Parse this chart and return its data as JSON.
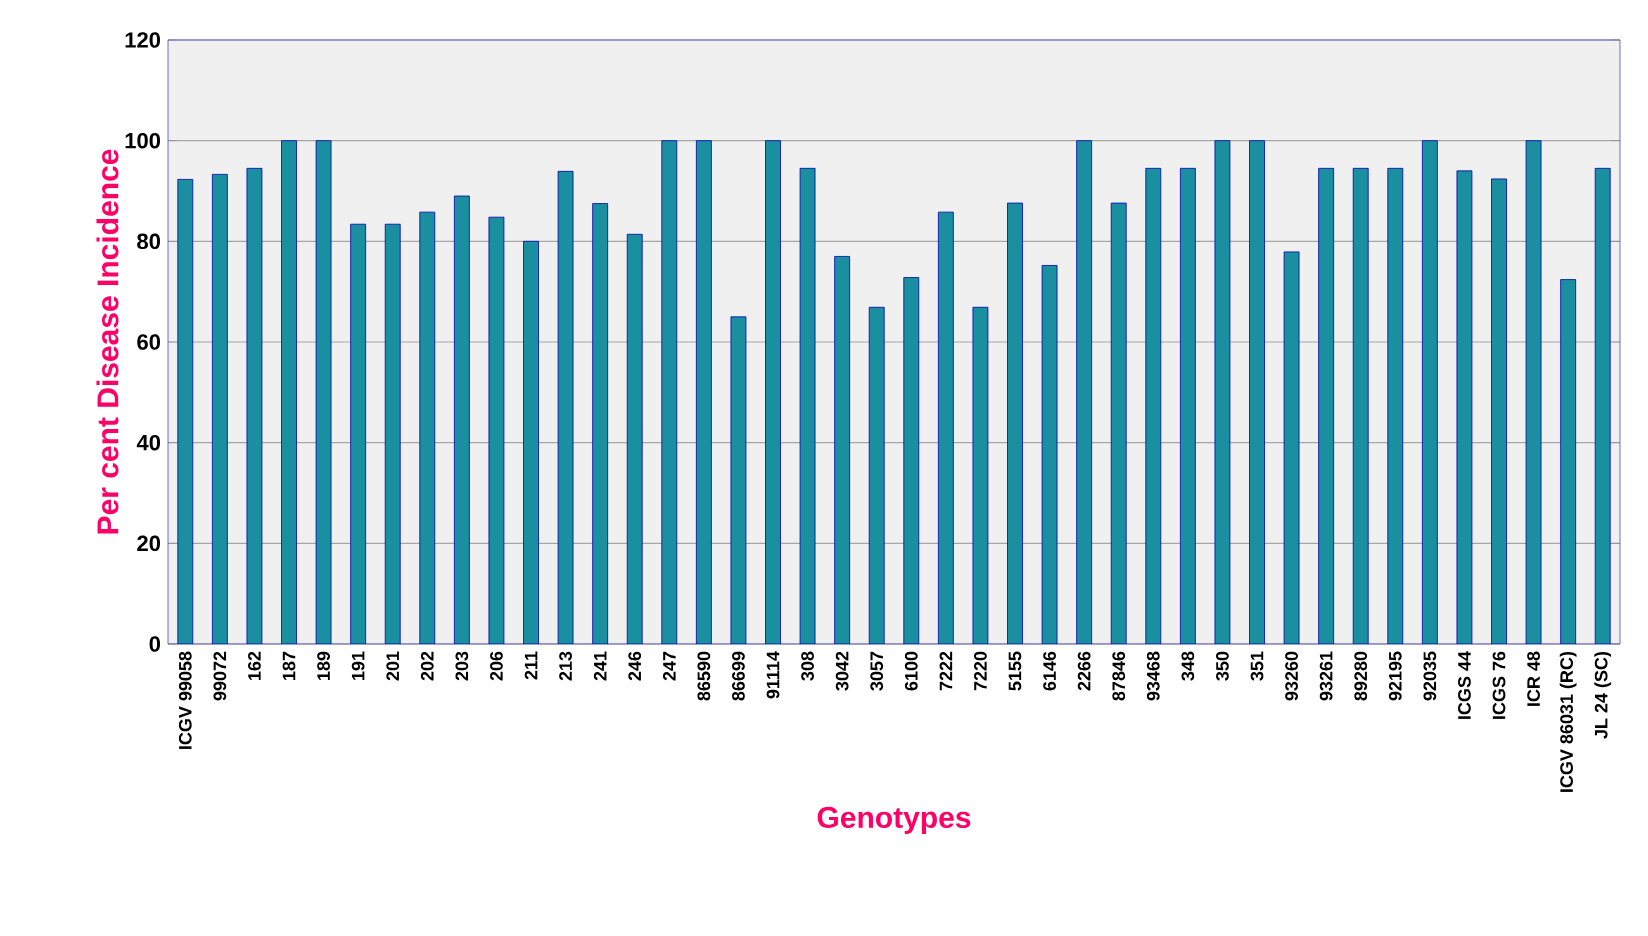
{
  "chart_data": {
    "type": "bar",
    "xlabel": "Genotypes",
    "ylabel": "Per cent Disease  Incidence",
    "categories": [
      "ICGV 99058",
      "99072",
      "162",
      "187",
      "189",
      "191",
      "201",
      "202",
      "203",
      "206",
      "211",
      "213",
      "241",
      "246",
      "247",
      "86590",
      "86699",
      "91114",
      "308",
      "3042",
      "3057",
      "6100",
      "7222",
      "7220",
      "5155",
      "6146",
      "2266",
      "87846",
      "93468",
      "348",
      "350",
      "351",
      "93260",
      "93261",
      "89280",
      "92195",
      "92035",
      "ICGS 44",
      "ICGS 76",
      "ICR 48",
      "ICGV 86031 (RC)",
      "JL 24 (SC)"
    ],
    "values": [
      92.3,
      93.3,
      94.5,
      100,
      100,
      83.4,
      83.4,
      85.8,
      89.0,
      84.8,
      80.0,
      93.9,
      87.5,
      81.4,
      100,
      100,
      65.0,
      100,
      94.5,
      77.0,
      66.9,
      72.8,
      85.8,
      66.9,
      87.6,
      75.2,
      100,
      87.6,
      94.5,
      94.5,
      100,
      100,
      77.9,
      94.5,
      94.5,
      94.5,
      100,
      94.0,
      92.4,
      100,
      72.4,
      94.5
    ],
    "color": "#1a8fa0",
    "ylim": [
      0,
      120
    ],
    "yticks": [
      0,
      20,
      40,
      60,
      80,
      100,
      120
    ],
    "grid": "y"
  }
}
